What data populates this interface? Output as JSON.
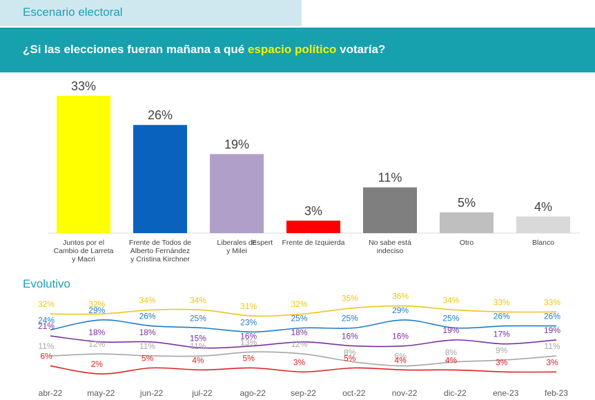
{
  "header": {
    "section_title": "Escenario electoral",
    "question_pre": "¿Si las elecciones fueran mañana a qué ",
    "question_highlight": "espacio político",
    "question_post": " votaría?"
  },
  "evolution_title": "Evolutivo",
  "chart_data": [
    {
      "type": "bar",
      "title": "",
      "categories": [
        [
          "Juntos por el",
          "Cambio de Larreta",
          "y Macri"
        ],
        [
          "Frente de Todos de",
          "Alberto Fernández",
          "y Cristina Kirchner"
        ],
        [
          "Liberales de",
          "y Milei"
        ],
        [
          "Frente de Izquierda"
        ],
        [
          "No sabe está",
          "indeciso"
        ],
        [
          "Otro"
        ],
        [
          "Blanco"
        ]
      ],
      "extra_label": "Espert",
      "values": [
        33,
        26,
        19,
        3,
        11,
        5,
        4
      ],
      "value_labels": [
        "33%",
        "26%",
        "19%",
        "3%",
        "11%",
        "5%",
        "4%"
      ],
      "colors": [
        "#ffff00",
        "#0a62bf",
        "#b09fc9",
        "#ff0000",
        "#7f7f7f",
        "#bfbfbf",
        "#d9d9d9"
      ],
      "ylim": [
        0,
        33
      ]
    },
    {
      "type": "line",
      "title": "Evolutivo",
      "x": [
        "abr-22",
        "may-22",
        "jun-22",
        "jul-22",
        "ago-22",
        "sep-22",
        "oct-22",
        "nov-22",
        "dic-22",
        "ene-23",
        "feb-23"
      ],
      "series": [
        {
          "color": "#f0c419",
          "values": [
            32,
            32,
            34,
            34,
            31,
            32,
            35,
            36,
            34,
            33,
            33
          ],
          "labels": [
            "32%",
            "32%",
            "34%",
            "34%",
            "31%",
            "32%",
            "35%",
            "36%",
            "34%",
            "33%",
            "33%"
          ]
        },
        {
          "color": "#1f7bc4",
          "values": [
            24,
            29,
            26,
            25,
            23,
            25,
            25,
            29,
            25,
            26,
            26
          ],
          "labels": [
            "24%",
            "29%",
            "26%",
            "25%",
            "23%",
            "25%",
            "25%",
            "29%",
            "25%",
            "26%",
            "26%"
          ]
        },
        {
          "color": "#7b2fa1",
          "values": [
            21,
            18,
            18,
            15,
            16,
            18,
            16,
            16,
            19,
            17,
            19
          ],
          "labels": [
            "21%",
            "18%",
            "18%",
            "15%",
            "16%",
            "18%",
            "16%",
            "16%",
            "19%",
            "17%",
            "19%"
          ]
        },
        {
          "color": "#a6a6a6",
          "values": [
            11,
            12,
            11,
            11,
            13,
            12,
            8,
            6,
            8,
            9,
            11
          ],
          "labels": [
            "11%",
            "12%",
            "11%",
            "11%",
            "13%",
            "12%",
            "8%",
            "6%",
            "8%",
            "9%",
            "11%"
          ]
        },
        {
          "color": "#e02020",
          "values": [
            6,
            2,
            5,
            4,
            5,
            3,
            5,
            4,
            4,
            3,
            3
          ],
          "labels": [
            "6%",
            "2%",
            "5%",
            "4%",
            "5%",
            "3%",
            "5%",
            "4%",
            "4%",
            "3%",
            "3%"
          ]
        }
      ]
    }
  ]
}
